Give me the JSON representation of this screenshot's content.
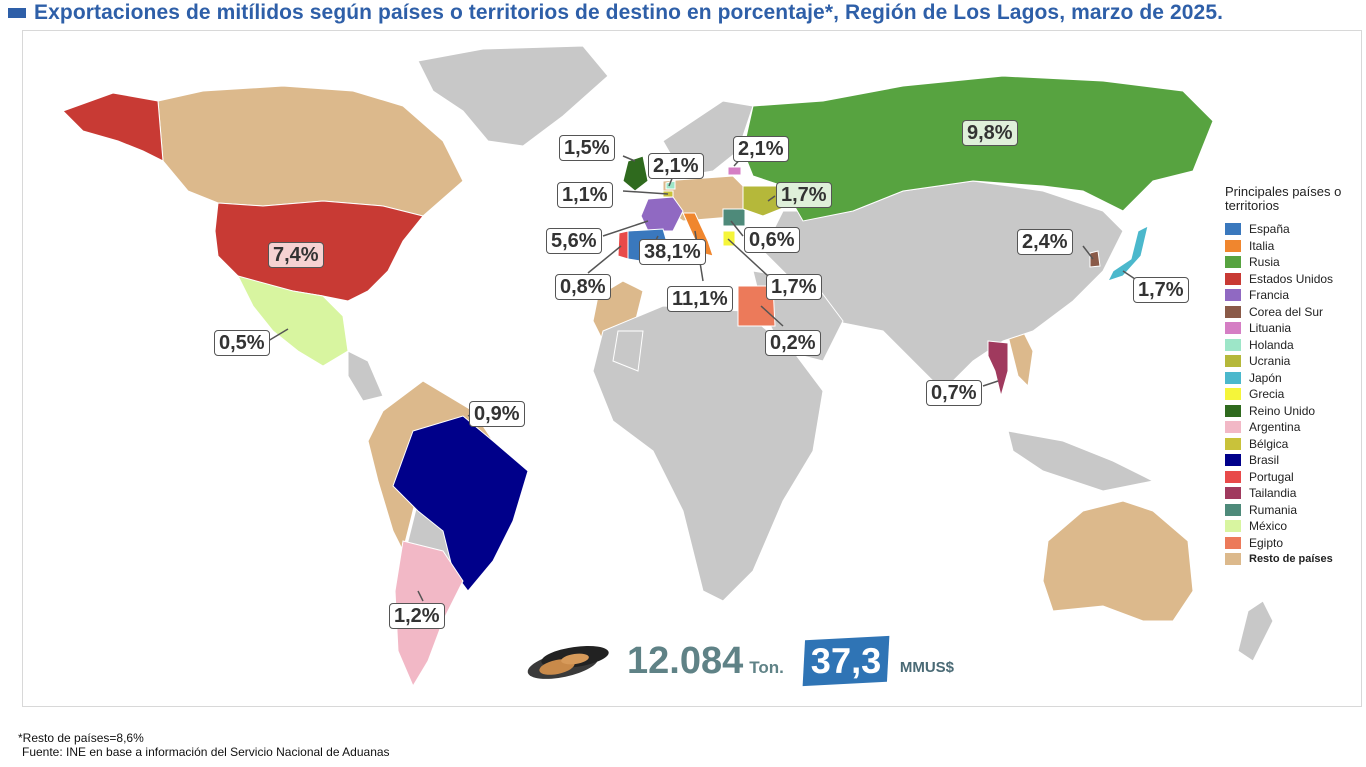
{
  "title": "Exportaciones de mitílidos según países o territorios de destino en porcentaje*, Región de Los Lagos, marzo de 2025.",
  "colors": {
    "title": "#2e5fa8",
    "other_country": "#c8c8c8",
    "resto": "#dcb98c"
  },
  "legend": {
    "title": "Principales países o territorios",
    "items": [
      {
        "label": "España",
        "color": "#3a78bd"
      },
      {
        "label": "Italia",
        "color": "#f0862e"
      },
      {
        "label": "Rusia",
        "color": "#57a340"
      },
      {
        "label": "Estados Unidos",
        "color": "#c83a34"
      },
      {
        "label": "Francia",
        "color": "#9069c2"
      },
      {
        "label": "Corea del Sur",
        "color": "#8a5a48"
      },
      {
        "label": "Lituania",
        "color": "#d57ec4"
      },
      {
        "label": "Holanda",
        "color": "#9de6c8"
      },
      {
        "label": "Ucrania",
        "color": "#b5b83a"
      },
      {
        "label": "Japón",
        "color": "#4bb8cc"
      },
      {
        "label": "Grecia",
        "color": "#f5f53a"
      },
      {
        "label": "Reino Unido",
        "color": "#2f6a1e"
      },
      {
        "label": "Argentina",
        "color": "#f2b8c6"
      },
      {
        "label": "Bélgica",
        "color": "#c9c23a"
      },
      {
        "label": "Brasil",
        "color": "#00008a"
      },
      {
        "label": "Portugal",
        "color": "#e84a4a"
      },
      {
        "label": "Tailandia",
        "color": "#a03a5e"
      },
      {
        "label": "Rumania",
        "color": "#4e8a7a"
      },
      {
        "label": "México",
        "color": "#d8f5a0"
      },
      {
        "label": "Egipto",
        "color": "#ec7a5a"
      },
      {
        "label": "Resto de países",
        "color": "#dcb98c"
      }
    ]
  },
  "callouts": [
    {
      "country": "Estados Unidos",
      "text": "7,4%"
    },
    {
      "country": "México",
      "text": "0,5%"
    },
    {
      "country": "Brasil",
      "text": "0,9%"
    },
    {
      "country": "Argentina",
      "text": "1,2%"
    },
    {
      "country": "Reino Unido",
      "text": "1,5%"
    },
    {
      "country": "Holanda",
      "text": "2,1%"
    },
    {
      "country": "Bélgica",
      "text": "1,1%"
    },
    {
      "country": "Francia",
      "text": "5,6%"
    },
    {
      "country": "Portugal",
      "text": "0,8%"
    },
    {
      "country": "España",
      "text": "38,1%"
    },
    {
      "country": "Italia",
      "text": "11,1%"
    },
    {
      "country": "Lituania",
      "text": "2,1%"
    },
    {
      "country": "Ucrania",
      "text": "1,7%"
    },
    {
      "country": "Rumania",
      "text": "0,6%"
    },
    {
      "country": "Grecia",
      "text": "1,7%"
    },
    {
      "country": "Egipto",
      "text": "0,2%"
    },
    {
      "country": "Rusia",
      "text": "9,8%"
    },
    {
      "country": "Corea del Sur",
      "text": "2,4%"
    },
    {
      "country": "Japón",
      "text": "1,7%"
    },
    {
      "country": "Tailandia",
      "text": "0,7%"
    }
  ],
  "stats": {
    "tons_value": "12.084",
    "tons_unit": "Ton.",
    "usd_value": "37,3",
    "usd_unit": "MMUS$"
  },
  "footnote": "*Resto de países=8,6%",
  "source": "Fuente: INE en base a información del Servicio Nacional de Aduanas"
}
